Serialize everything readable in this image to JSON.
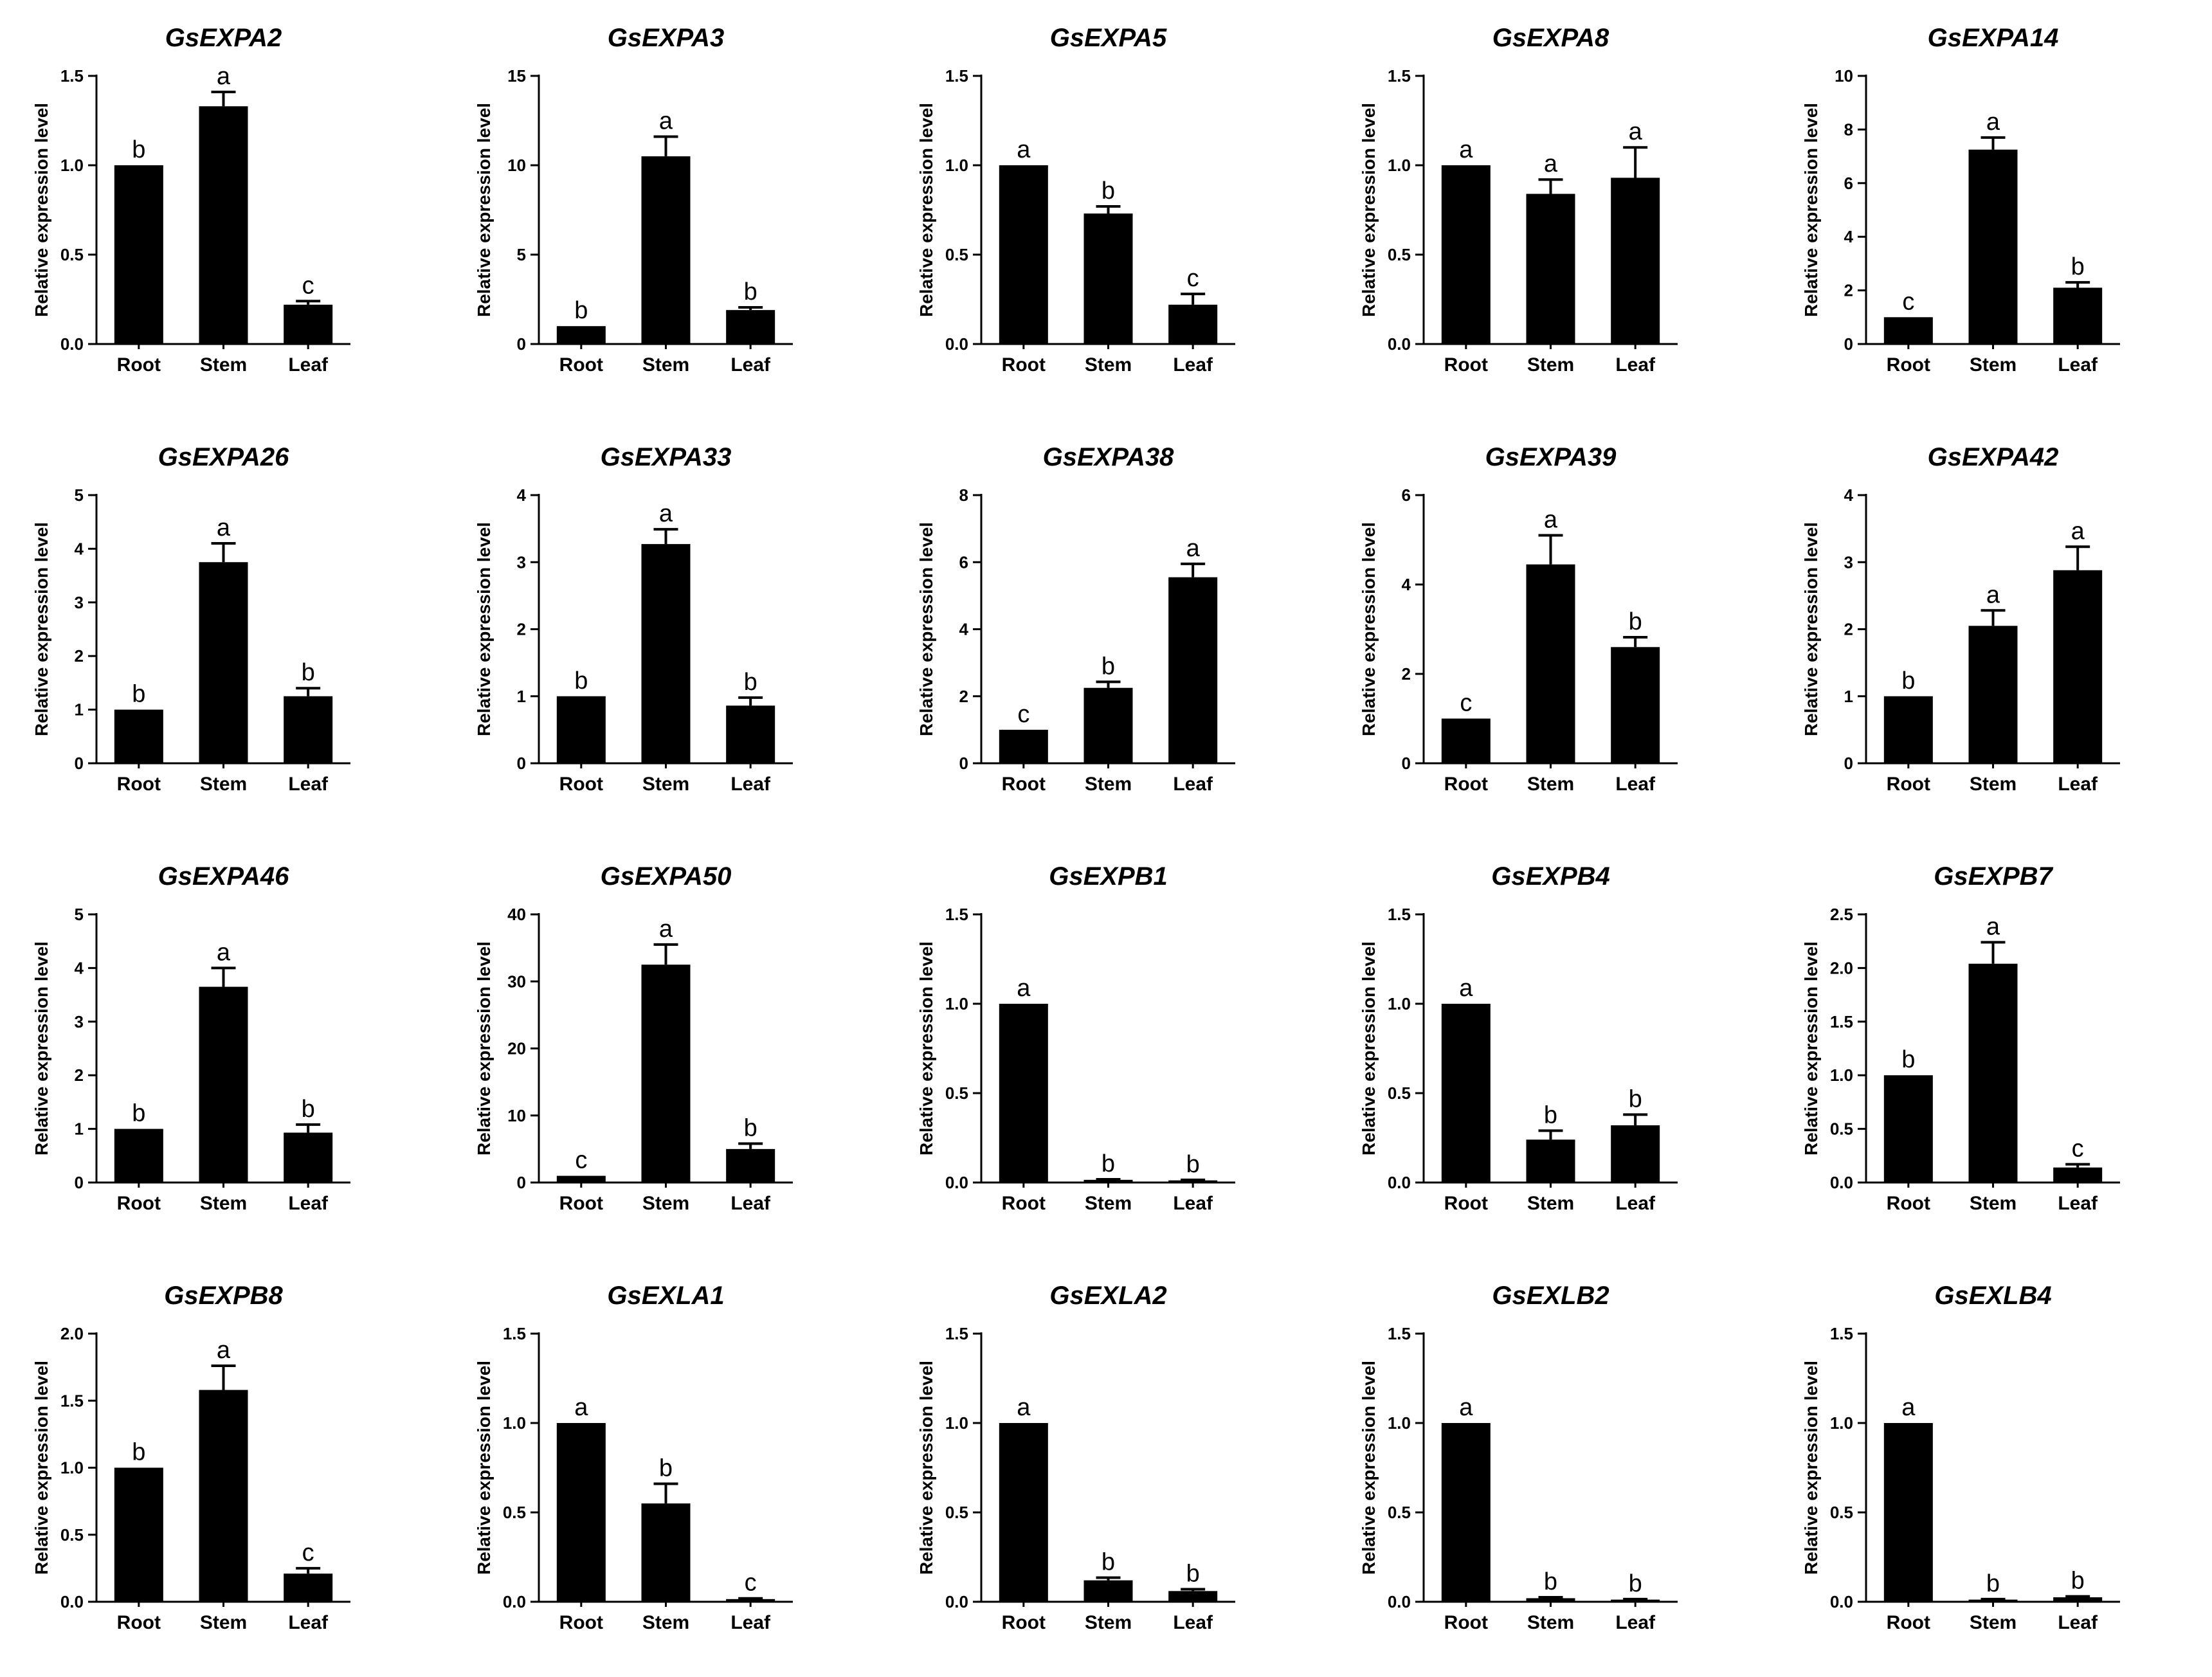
{
  "figure": {
    "ylabel": "Relative expression level",
    "categories": [
      "Root",
      "Stem",
      "Leaf"
    ]
  },
  "chart_data": [
    {
      "type": "bar",
      "title": "GsEXPA2",
      "xlabel": "",
      "ylabel": "Relative expression level",
      "categories": [
        "Root",
        "Stem",
        "Leaf"
      ],
      "values": [
        1.0,
        1.33,
        0.22
      ],
      "errors": [
        0.0,
        0.08,
        0.02
      ],
      "letters": [
        "b",
        "a",
        "c"
      ],
      "ylim": [
        0,
        1.5
      ],
      "yticks": [
        0,
        0.5,
        1.0,
        1.5
      ],
      "tick_labels": [
        "0.0",
        "0.5",
        "1.0",
        "1.5"
      ]
    },
    {
      "type": "bar",
      "title": "GsEXPA3",
      "xlabel": "",
      "ylabel": "Relative expression level",
      "categories": [
        "Root",
        "Stem",
        "Leaf"
      ],
      "values": [
        1.0,
        10.5,
        1.9
      ],
      "errors": [
        0.0,
        1.1,
        0.15
      ],
      "letters": [
        "b",
        "a",
        "b"
      ],
      "ylim": [
        0,
        15
      ],
      "yticks": [
        0,
        5,
        10,
        15
      ],
      "tick_labels": [
        "0",
        "5",
        "10",
        "15"
      ]
    },
    {
      "type": "bar",
      "title": "GsEXPA5",
      "xlabel": "",
      "ylabel": "Relative expression level",
      "categories": [
        "Root",
        "Stem",
        "Leaf"
      ],
      "values": [
        1.0,
        0.73,
        0.22
      ],
      "errors": [
        0.0,
        0.04,
        0.06
      ],
      "letters": [
        "a",
        "b",
        "c"
      ],
      "ylim": [
        0,
        1.5
      ],
      "yticks": [
        0,
        0.5,
        1.0,
        1.5
      ],
      "tick_labels": [
        "0.0",
        "0.5",
        "1.0",
        "1.5"
      ]
    },
    {
      "type": "bar",
      "title": "GsEXPA8",
      "xlabel": "",
      "ylabel": "Relative expression level",
      "categories": [
        "Root",
        "Stem",
        "Leaf"
      ],
      "values": [
        1.0,
        0.84,
        0.93
      ],
      "errors": [
        0.0,
        0.08,
        0.17
      ],
      "letters": [
        "a",
        "a",
        "a"
      ],
      "ylim": [
        0,
        1.5
      ],
      "yticks": [
        0,
        0.5,
        1.0,
        1.5
      ],
      "tick_labels": [
        "0.0",
        "0.5",
        "1.0",
        "1.5"
      ]
    },
    {
      "type": "bar",
      "title": "GsEXPA14",
      "xlabel": "",
      "ylabel": "Relative expression level",
      "categories": [
        "Root",
        "Stem",
        "Leaf"
      ],
      "values": [
        1.0,
        7.25,
        2.1
      ],
      "errors": [
        0.0,
        0.45,
        0.2
      ],
      "letters": [
        "c",
        "a",
        "b"
      ],
      "ylim": [
        0,
        10
      ],
      "yticks": [
        0,
        2,
        4,
        6,
        8,
        10
      ],
      "tick_labels": [
        "0",
        "2",
        "4",
        "6",
        "8",
        "10"
      ]
    },
    {
      "type": "bar",
      "title": "GsEXPA26",
      "xlabel": "",
      "ylabel": "Relative expression level",
      "categories": [
        "Root",
        "Stem",
        "Leaf"
      ],
      "values": [
        1.0,
        3.75,
        1.25
      ],
      "errors": [
        0.0,
        0.35,
        0.15
      ],
      "letters": [
        "b",
        "a",
        "b"
      ],
      "ylim": [
        0,
        5
      ],
      "yticks": [
        0,
        1,
        2,
        3,
        4,
        5
      ],
      "tick_labels": [
        "0",
        "1",
        "2",
        "3",
        "4",
        "5"
      ]
    },
    {
      "type": "bar",
      "title": "GsEXPA33",
      "xlabel": "",
      "ylabel": "Relative expression level",
      "categories": [
        "Root",
        "Stem",
        "Leaf"
      ],
      "values": [
        1.0,
        3.27,
        0.86
      ],
      "errors": [
        0.0,
        0.22,
        0.12
      ],
      "letters": [
        "b",
        "a",
        "b"
      ],
      "ylim": [
        0,
        4
      ],
      "yticks": [
        0,
        1,
        2,
        3,
        4
      ],
      "tick_labels": [
        "0",
        "1",
        "2",
        "3",
        "4"
      ]
    },
    {
      "type": "bar",
      "title": "GsEXPA38",
      "xlabel": "",
      "ylabel": "Relative expression level",
      "categories": [
        "Root",
        "Stem",
        "Leaf"
      ],
      "values": [
        1.0,
        2.25,
        5.55
      ],
      "errors": [
        0.0,
        0.18,
        0.4
      ],
      "letters": [
        "c",
        "b",
        "a"
      ],
      "ylim": [
        0,
        8
      ],
      "yticks": [
        0,
        2,
        4,
        6,
        8
      ],
      "tick_labels": [
        "0",
        "2",
        "4",
        "6",
        "8"
      ]
    },
    {
      "type": "bar",
      "title": "GsEXPA39",
      "xlabel": "",
      "ylabel": "Relative expression level",
      "categories": [
        "Root",
        "Stem",
        "Leaf"
      ],
      "values": [
        1.0,
        4.45,
        2.6
      ],
      "errors": [
        0.0,
        0.65,
        0.22
      ],
      "letters": [
        "c",
        "a",
        "b"
      ],
      "ylim": [
        0,
        6
      ],
      "yticks": [
        0,
        2,
        4,
        6
      ],
      "tick_labels": [
        "0",
        "2",
        "4",
        "6"
      ]
    },
    {
      "type": "bar",
      "title": "GsEXPA42",
      "xlabel": "",
      "ylabel": "Relative expression level",
      "categories": [
        "Root",
        "Stem",
        "Leaf"
      ],
      "values": [
        1.0,
        2.05,
        2.88
      ],
      "errors": [
        0.0,
        0.23,
        0.35
      ],
      "letters": [
        "b",
        "a",
        "a"
      ],
      "ylim": [
        0,
        4
      ],
      "yticks": [
        0,
        1,
        2,
        3,
        4
      ],
      "tick_labels": [
        "0",
        "1",
        "2",
        "3",
        "4"
      ]
    },
    {
      "type": "bar",
      "title": "GsEXPA46",
      "xlabel": "",
      "ylabel": "Relative expression level",
      "categories": [
        "Root",
        "Stem",
        "Leaf"
      ],
      "values": [
        1.0,
        3.65,
        0.93
      ],
      "errors": [
        0.0,
        0.35,
        0.15
      ],
      "letters": [
        "b",
        "a",
        "b"
      ],
      "ylim": [
        0,
        5
      ],
      "yticks": [
        0,
        1,
        2,
        3,
        4,
        5
      ],
      "tick_labels": [
        "0",
        "1",
        "2",
        "3",
        "4",
        "5"
      ]
    },
    {
      "type": "bar",
      "title": "GsEXPA50",
      "xlabel": "",
      "ylabel": "Relative expression level",
      "categories": [
        "Root",
        "Stem",
        "Leaf"
      ],
      "values": [
        1.0,
        32.5,
        5.0
      ],
      "errors": [
        0.0,
        3.0,
        0.8
      ],
      "letters": [
        "c",
        "a",
        "b"
      ],
      "ylim": [
        0,
        40
      ],
      "yticks": [
        0,
        10,
        20,
        30,
        40
      ],
      "tick_labels": [
        "0",
        "10",
        "20",
        "30",
        "40"
      ]
    },
    {
      "type": "bar",
      "title": "GsEXPB1",
      "xlabel": "",
      "ylabel": "Relative expression level",
      "categories": [
        "Root",
        "Stem",
        "Leaf"
      ],
      "values": [
        1.0,
        0.015,
        0.012
      ],
      "errors": [
        0.0,
        0.003,
        0.003
      ],
      "letters": [
        "a",
        "b",
        "b"
      ],
      "ylim": [
        0,
        1.5
      ],
      "yticks": [
        0,
        0.5,
        1.0,
        1.5
      ],
      "tick_labels": [
        "0.0",
        "0.5",
        "1.0",
        "1.5"
      ]
    },
    {
      "type": "bar",
      "title": "GsEXPB4",
      "xlabel": "",
      "ylabel": "Relative expression level",
      "categories": [
        "Root",
        "Stem",
        "Leaf"
      ],
      "values": [
        1.0,
        0.24,
        0.32
      ],
      "errors": [
        0.0,
        0.05,
        0.06
      ],
      "letters": [
        "a",
        "b",
        "b"
      ],
      "ylim": [
        0,
        1.5
      ],
      "yticks": [
        0,
        0.5,
        1.0,
        1.5
      ],
      "tick_labels": [
        "0.0",
        "0.5",
        "1.0",
        "1.5"
      ]
    },
    {
      "type": "bar",
      "title": "GsEXPB7",
      "xlabel": "",
      "ylabel": "Relative expression level",
      "categories": [
        "Root",
        "Stem",
        "Leaf"
      ],
      "values": [
        1.0,
        2.04,
        0.14
      ],
      "errors": [
        0.0,
        0.2,
        0.03
      ],
      "letters": [
        "b",
        "a",
        "c"
      ],
      "ylim": [
        0,
        2.5
      ],
      "yticks": [
        0,
        0.5,
        1.0,
        1.5,
        2.0,
        2.5
      ],
      "tick_labels": [
        "0.0",
        "0.5",
        "1.0",
        "1.5",
        "2.0",
        "2.5"
      ]
    },
    {
      "type": "bar",
      "title": "GsEXPB8",
      "xlabel": "",
      "ylabel": "Relative expression level",
      "categories": [
        "Root",
        "Stem",
        "Leaf"
      ],
      "values": [
        1.0,
        1.58,
        0.21
      ],
      "errors": [
        0.0,
        0.18,
        0.04
      ],
      "letters": [
        "b",
        "a",
        "c"
      ],
      "ylim": [
        0,
        2.0
      ],
      "yticks": [
        0,
        0.5,
        1.0,
        1.5,
        2.0
      ],
      "tick_labels": [
        "0.0",
        "0.5",
        "1.0",
        "1.5",
        "2.0"
      ]
    },
    {
      "type": "bar",
      "title": "GsEXLA1",
      "xlabel": "",
      "ylabel": "Relative expression level",
      "categories": [
        "Root",
        "Stem",
        "Leaf"
      ],
      "values": [
        1.0,
        0.55,
        0.015
      ],
      "errors": [
        0.0,
        0.11,
        0.004
      ],
      "letters": [
        "a",
        "b",
        "c"
      ],
      "ylim": [
        0,
        1.5
      ],
      "yticks": [
        0,
        0.5,
        1.0,
        1.5
      ],
      "tick_labels": [
        "0.0",
        "0.5",
        "1.0",
        "1.5"
      ]
    },
    {
      "type": "bar",
      "title": "GsEXLA2",
      "xlabel": "",
      "ylabel": "Relative expression level",
      "categories": [
        "Root",
        "Stem",
        "Leaf"
      ],
      "values": [
        1.0,
        0.12,
        0.06
      ],
      "errors": [
        0.0,
        0.015,
        0.01
      ],
      "letters": [
        "a",
        "b",
        "b"
      ],
      "ylim": [
        0,
        1.5
      ],
      "yticks": [
        0,
        0.5,
        1.0,
        1.5
      ],
      "tick_labels": [
        "0.0",
        "0.5",
        "1.0",
        "1.5"
      ]
    },
    {
      "type": "bar",
      "title": "GsEXLB2",
      "xlabel": "",
      "ylabel": "Relative expression level",
      "categories": [
        "Root",
        "Stem",
        "Leaf"
      ],
      "values": [
        1.0,
        0.02,
        0.012
      ],
      "errors": [
        0.0,
        0.005,
        0.003
      ],
      "letters": [
        "a",
        "b",
        "b"
      ],
      "ylim": [
        0,
        1.5
      ],
      "yticks": [
        0,
        0.5,
        1.0,
        1.5
      ],
      "tick_labels": [
        "0.0",
        "0.5",
        "1.0",
        "1.5"
      ]
    },
    {
      "type": "bar",
      "title": "GsEXLB4",
      "xlabel": "",
      "ylabel": "Relative expression level",
      "categories": [
        "Root",
        "Stem",
        "Leaf"
      ],
      "values": [
        1.0,
        0.012,
        0.025
      ],
      "errors": [
        0.0,
        0.003,
        0.005
      ],
      "letters": [
        "a",
        "b",
        "b"
      ],
      "ylim": [
        0,
        1.5
      ],
      "yticks": [
        0,
        0.5,
        1.0,
        1.5
      ],
      "tick_labels": [
        "0.0",
        "0.5",
        "1.0",
        "1.5"
      ]
    }
  ]
}
